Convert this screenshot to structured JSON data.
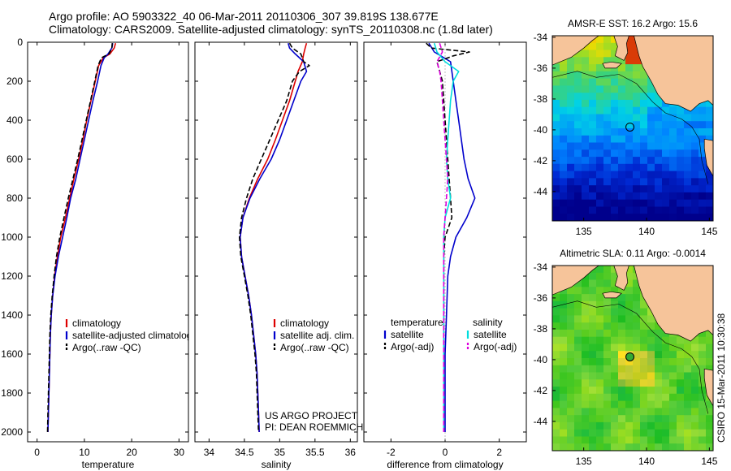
{
  "figure": {
    "title_line1": "Argo profile: AO 5903322_40 06-Mar-2011 20110306_307 39.819S 138.677E",
    "title_line2": "Climatology: CARS2009. Satellite-adjusted climatology: synTS_20110308.nc (1.8d later)",
    "side_label": "CSIRO 15-Mar-2011 10:30:38",
    "project_line1": "US ARGO PROJECT",
    "project_line2": "PI: DEAN ROEMMICH",
    "colors": {
      "red": "#dd0000",
      "blue": "#0000cc",
      "black": "#000000",
      "cyan": "#00dddd",
      "magenta": "#dd00dd",
      "land": "#f6c49a"
    }
  },
  "chart_data": [
    {
      "id": "temperature",
      "type": "line",
      "xlabel": "temperature",
      "xlim": [
        -2,
        32
      ],
      "ylim": [
        2050,
        0
      ],
      "xticks": [
        0,
        10,
        20,
        30
      ],
      "yticks": [
        0,
        200,
        400,
        600,
        800,
        1000,
        1200,
        1400,
        1600,
        1800,
        2000
      ],
      "legend": [
        "climatology",
        "satellite-adjusted climatology",
        "Argo(..raw -QC)"
      ],
      "legend_position": "lower-right",
      "series": [
        {
          "name": "climatology",
          "color": "#dd0000",
          "depth": [
            5,
            30,
            60,
            80,
            120,
            200,
            300,
            400,
            500,
            600,
            700,
            800,
            900,
            1000,
            1100,
            1200,
            1300,
            1400,
            1500,
            1600,
            1700,
            1800,
            1900,
            2000
          ],
          "values": [
            16.6,
            16.3,
            15.4,
            14.0,
            13.0,
            12.3,
            11.4,
            10.5,
            9.7,
            8.8,
            7.8,
            6.9,
            6.0,
            5.0,
            4.3,
            3.7,
            3.3,
            3.0,
            2.8,
            2.7,
            2.6,
            2.5,
            2.4,
            2.3
          ]
        },
        {
          "name": "satellite-adjusted climatology",
          "color": "#0000cc",
          "depth": [
            5,
            30,
            60,
            80,
            120,
            200,
            300,
            400,
            500,
            600,
            700,
            800,
            900,
            1000,
            1100,
            1200,
            1300,
            1400,
            1500,
            1600,
            1700,
            1800,
            1900,
            2000
          ],
          "values": [
            16.0,
            15.8,
            15.0,
            14.2,
            13.5,
            12.8,
            11.8,
            10.9,
            10.0,
            9.1,
            8.2,
            7.1,
            6.3,
            5.4,
            4.5,
            3.8,
            3.3,
            3.0,
            2.8,
            2.7,
            2.6,
            2.5,
            2.4,
            2.3
          ]
        },
        {
          "name": "Argo(..raw -QC)",
          "color": "#000000",
          "dash": "6 3",
          "depth": [
            5,
            30,
            60,
            80,
            120,
            200,
            300,
            400,
            500,
            600,
            700,
            800,
            900,
            1000,
            1100,
            1200,
            1300,
            1400,
            1500,
            1600,
            1700,
            1800,
            1900,
            2000
          ],
          "values": [
            15.9,
            15.8,
            15.2,
            13.6,
            12.9,
            12.2,
            11.3,
            10.4,
            9.5,
            8.6,
            7.6,
            6.6,
            5.7,
            4.8,
            4.1,
            3.6,
            3.2,
            2.9,
            2.7,
            2.6,
            2.5,
            2.4,
            2.3,
            2.2
          ]
        }
      ]
    },
    {
      "id": "salinity",
      "type": "line",
      "xlabel": "salinity",
      "xlim": [
        33.8,
        36.1
      ],
      "ylim": [
        2050,
        0
      ],
      "xticks": [
        34,
        34.5,
        35,
        35.5,
        36
      ],
      "xticklabels": [
        "34",
        "34.5",
        "35",
        "35.5",
        "36"
      ],
      "legend": [
        "climatology",
        "satellite adj. clim.",
        "Argo(..raw -QC)"
      ],
      "legend_position": "lower-right",
      "series": [
        {
          "name": "climatology",
          "color": "#dd0000",
          "depth": [
            5,
            30,
            60,
            100,
            150,
            200,
            300,
            400,
            500,
            600,
            700,
            800,
            900,
            1000,
            1100,
            1200,
            1300,
            1400,
            1500,
            1600,
            1700,
            1800,
            1900,
            2000
          ],
          "values": [
            35.38,
            35.36,
            35.34,
            35.32,
            35.26,
            35.22,
            35.14,
            35.04,
            34.94,
            34.83,
            34.69,
            34.57,
            34.48,
            34.44,
            34.46,
            34.51,
            34.56,
            34.6,
            34.63,
            34.66,
            34.68,
            34.69,
            34.7,
            34.71
          ]
        },
        {
          "name": "satellite adj. clim.",
          "color": "#0000cc",
          "depth": [
            5,
            30,
            60,
            100,
            150,
            200,
            300,
            400,
            500,
            600,
            700,
            800,
            900,
            1000,
            1100,
            1200,
            1300,
            1400,
            1500,
            1600,
            1700,
            1800,
            1900,
            2000
          ],
          "values": [
            35.12,
            35.14,
            35.22,
            35.34,
            35.38,
            35.3,
            35.2,
            35.1,
            35.0,
            34.88,
            34.72,
            34.58,
            34.48,
            34.44,
            34.46,
            34.51,
            34.56,
            34.6,
            34.63,
            34.66,
            34.68,
            34.69,
            34.7,
            34.71
          ]
        },
        {
          "name": "Argo(..raw -QC)",
          "color": "#000000",
          "dash": "6 3",
          "depth": [
            5,
            30,
            60,
            100,
            120,
            150,
            200,
            300,
            400,
            500,
            600,
            700,
            800,
            900,
            1000,
            1100,
            1200,
            1300,
            1400,
            1500,
            1600,
            1700,
            1800,
            1900,
            2000
          ],
          "values": [
            35.14,
            35.18,
            35.3,
            35.34,
            35.42,
            35.28,
            35.18,
            35.1,
            34.98,
            34.86,
            34.74,
            34.62,
            34.53,
            34.46,
            34.43,
            34.45,
            34.5,
            34.55,
            34.59,
            34.62,
            34.65,
            34.67,
            34.68,
            34.69,
            34.7
          ]
        }
      ]
    },
    {
      "id": "difference",
      "type": "line",
      "xlabel": "difference from climatology",
      "xlim": [
        -3,
        3
      ],
      "ylim": [
        2050,
        0
      ],
      "xticks": [
        -2,
        0,
        2
      ],
      "legend_temperature_header": "temperature",
      "legend_salinity_header": "salinity",
      "legend": [
        "satellite",
        "Argo(-adj)",
        "satellite",
        "Argo(-adj)"
      ],
      "legend_position": "lower-center",
      "series": [
        {
          "name": "satellite",
          "group": "temperature",
          "color": "#0000cc",
          "depth": [
            5,
            50,
            100,
            200,
            300,
            400,
            500,
            600,
            700,
            800,
            900,
            1000,
            1100,
            1200,
            1400,
            1600,
            1800,
            2000
          ],
          "values": [
            -0.6,
            -0.4,
            0.2,
            0.3,
            0.4,
            0.5,
            0.6,
            0.7,
            0.85,
            1.1,
            0.8,
            0.4,
            0.2,
            0.1,
            0.05,
            0.0,
            0.0,
            0.0
          ]
        },
        {
          "name": "Argo(-adj)",
          "group": "temperature",
          "color": "#000000",
          "dash": "6 3",
          "depth": [
            5,
            30,
            50,
            70,
            100,
            200,
            300,
            400,
            500,
            600,
            700,
            800,
            900,
            1000,
            1100,
            1200,
            1400,
            1600,
            1800,
            2000
          ],
          "values": [
            -0.7,
            -0.5,
            0.9,
            0.3,
            -0.3,
            -0.1,
            -0.05,
            0.0,
            0.05,
            0.1,
            0.15,
            0.2,
            0.25,
            0.0,
            -0.05,
            -0.05,
            -0.05,
            -0.05,
            -0.05,
            -0.05
          ]
        },
        {
          "name": "satellite",
          "group": "salinity",
          "color": "#00dddd",
          "depth": [
            5,
            50,
            100,
            150,
            200,
            300,
            400,
            500,
            600,
            700,
            800,
            900,
            1000,
            1100,
            1200,
            1400,
            1600,
            1800,
            2000
          ],
          "values": [
            -0.4,
            -0.3,
            0.0,
            0.5,
            0.3,
            0.2,
            0.15,
            0.1,
            0.05,
            0.1,
            0.2,
            0.0,
            -0.05,
            -0.05,
            -0.05,
            -0.05,
            -0.05,
            -0.05,
            -0.05
          ]
        },
        {
          "name": "Argo(-adj)",
          "group": "salinity",
          "color": "#dd00dd",
          "dash": "6 3",
          "depth": [
            5,
            50,
            100,
            150,
            200,
            300,
            400,
            500,
            600,
            700,
            800,
            900,
            1000,
            1100,
            1200,
            1400,
            1600,
            1800,
            2000
          ],
          "values": [
            -0.2,
            -0.1,
            -0.3,
            -0.2,
            -0.15,
            -0.1,
            -0.05,
            0.0,
            0.05,
            0.1,
            0.05,
            0.0,
            -0.05,
            -0.05,
            -0.05,
            -0.05,
            -0.05,
            -0.05,
            -0.05
          ]
        }
      ]
    },
    {
      "id": "sst_map",
      "type": "heatmap",
      "title": "AMSR-E SST: 16.2 Argo: 15.6",
      "xlim": [
        132.5,
        145.3
      ],
      "ylim": [
        -45.9,
        -33.9
      ],
      "xticks": [
        135,
        140,
        145
      ],
      "yticks": [
        -34,
        -36,
        -38,
        -40,
        -42,
        -44
      ],
      "float_lon": 138.677,
      "float_lat": -39.819,
      "float_color": "#009900"
    },
    {
      "id": "sla_map",
      "type": "heatmap",
      "title": "Altimetric SLA: 0.11 Argo: -0.0014",
      "xlim": [
        132.5,
        145.3
      ],
      "ylim": [
        -45.9,
        -33.9
      ],
      "xticks": [
        135,
        140,
        145
      ],
      "yticks": [
        -34,
        -36,
        -38,
        -40,
        -42,
        -44
      ],
      "float_lon": 138.677,
      "float_lat": -39.819,
      "float_color": "#33aa33"
    }
  ]
}
